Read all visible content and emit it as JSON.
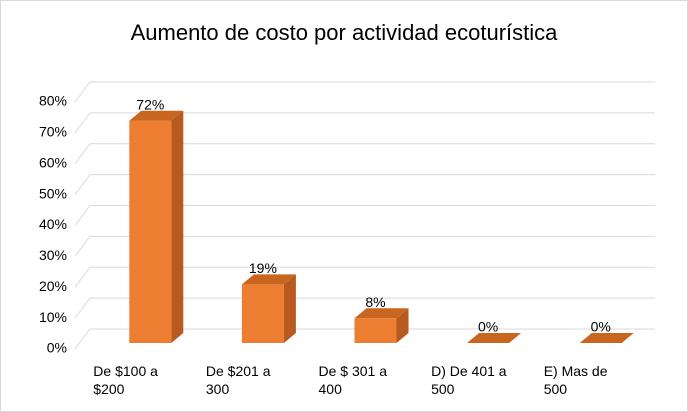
{
  "chart_data": {
    "type": "bar",
    "title": "Aumento de costo por actividad ecoturística",
    "categories": [
      "De $100 a $200",
      "De $201 a 300",
      "De $ 301 a 400",
      "D) De 401 a 500",
      "E) Mas de 500"
    ],
    "values": [
      72,
      19,
      8,
      0,
      0
    ],
    "value_labels": [
      "72%",
      "19%",
      "8%",
      "0%",
      "0%"
    ],
    "color": "#ed7d31",
    "ylim": [
      0,
      80
    ],
    "yticks": [
      {
        "value": 0,
        "label": "0%"
      },
      {
        "value": 10,
        "label": "10%"
      },
      {
        "value": 20,
        "label": "20%"
      },
      {
        "value": 30,
        "label": "30%"
      },
      {
        "value": 40,
        "label": "40%"
      },
      {
        "value": 50,
        "label": "50%"
      },
      {
        "value": 60,
        "label": "60%"
      },
      {
        "value": 70,
        "label": "70%"
      },
      {
        "value": 80,
        "label": "80%"
      }
    ],
    "grid": true
  }
}
